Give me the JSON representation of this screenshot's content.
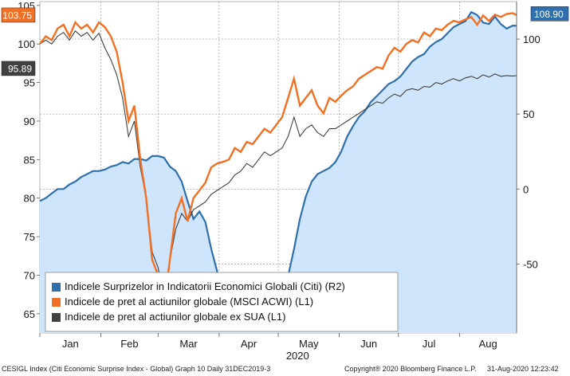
{
  "chart_data": {
    "type": "line",
    "year_label": "2020",
    "months": [
      "Jan",
      "Feb",
      "Mar",
      "Apr",
      "May",
      "Jun",
      "Jul",
      "Aug"
    ],
    "left_axis": {
      "ticks": [
        65,
        70,
        75,
        80,
        85,
        90,
        95,
        100,
        105
      ],
      "range": [
        62.5,
        105.5
      ]
    },
    "right_axis": {
      "ticks": [
        -50,
        0,
        50,
        100
      ],
      "range": [
        -96,
        125
      ]
    },
    "last_values": {
      "surprise": "108.90",
      "msci_acwi": "103.75",
      "ex_usa": "95.89"
    },
    "colors": {
      "surprise": "#2f6fad",
      "surprise_fill": "#cfe5fb",
      "msci_acwi": "#f27023",
      "ex_usa": "#404040",
      "grid": "#9a9a9a"
    },
    "legend_position": "bottom-left",
    "grid": true,
    "series": [
      {
        "name": "Indicele Surprizelor in Indicatorii Economici Globali (Citi) (R2)",
        "axis": "right",
        "x": [
          0,
          3,
          6,
          9,
          12,
          15,
          18,
          21,
          24,
          27,
          30,
          33,
          36,
          39,
          42,
          45,
          48,
          51,
          54,
          57,
          60,
          63,
          66,
          69,
          72,
          75,
          78,
          81,
          84,
          87,
          90,
          93,
          96,
          99,
          102,
          105,
          108,
          111,
          114,
          117,
          120,
          123,
          126,
          129,
          132,
          135,
          138,
          141,
          144,
          147,
          150,
          153,
          156,
          159,
          162,
          165,
          168,
          171,
          174,
          177,
          180,
          183,
          186,
          189,
          192,
          195,
          198,
          201,
          204,
          207,
          210,
          213,
          216,
          219,
          222,
          225,
          228,
          231,
          234,
          237,
          240,
          242
        ],
        "values": [
          -8,
          -6,
          -3,
          0,
          0,
          3,
          5,
          8,
          10,
          12,
          12,
          13,
          15,
          16,
          18,
          17,
          20,
          20,
          19,
          22,
          22,
          21,
          15,
          12,
          5,
          -8,
          -20,
          -15,
          -22,
          -40,
          -55,
          -70,
          -80,
          -85,
          -88,
          -90,
          -92,
          -90,
          -88,
          -80,
          -72,
          -65,
          -58,
          -40,
          -20,
          -5,
          5,
          10,
          12,
          14,
          18,
          25,
          35,
          42,
          48,
          52,
          58,
          62,
          66,
          70,
          72,
          75,
          80,
          85,
          88,
          90,
          95,
          98,
          100,
          104,
          108,
          110,
          112,
          118,
          116,
          111,
          110,
          115,
          110,
          107,
          109,
          108.9
        ]
      },
      {
        "name": "Indicele de pret al actiunilor globale (MSCI ACWI) (L1)",
        "axis": "left",
        "x": [
          0,
          3,
          6,
          9,
          12,
          15,
          18,
          21,
          24,
          27,
          30,
          33,
          36,
          39,
          42,
          45,
          48,
          51,
          54,
          57,
          60,
          63,
          66,
          69,
          72,
          75,
          78,
          81,
          84,
          87,
          90,
          93,
          96,
          99,
          102,
          105,
          108,
          111,
          114,
          117,
          120,
          123,
          126,
          129,
          132,
          135,
          138,
          141,
          144,
          147,
          150,
          153,
          156,
          159,
          162,
          165,
          168,
          171,
          174,
          177,
          180,
          183,
          186,
          189,
          192,
          195,
          198,
          201,
          204,
          207,
          210,
          213,
          216,
          219,
          222,
          225,
          228,
          231,
          234,
          237,
          240,
          242
        ],
        "values": [
          100,
          101,
          100.5,
          102,
          102.5,
          101,
          102.8,
          102,
          102.5,
          101.5,
          102.8,
          102.2,
          101,
          99,
          95,
          90,
          92,
          85,
          80,
          72,
          70,
          66,
          72,
          78,
          80,
          77,
          80,
          81,
          82,
          84,
          84.5,
          84.7,
          85,
          86.5,
          86,
          87.3,
          87,
          88,
          89,
          88.5,
          89.5,
          90.5,
          93,
          95.5,
          92,
          93,
          94,
          92,
          91,
          93,
          92.5,
          93.3,
          94,
          94.5,
          95.5,
          96,
          96.5,
          97,
          96.8,
          98.5,
          99.5,
          99,
          100,
          100.5,
          100.2,
          101.5,
          101,
          102,
          101.8,
          102.5,
          103,
          102.8,
          103.2,
          103.5,
          102.5,
          103.7,
          103,
          103.8,
          103.5,
          103.9,
          104,
          103.75
        ]
      },
      {
        "name": "Indicele de pret al actiunilor globale ex SUA (L1)",
        "axis": "left",
        "x": [
          0,
          3,
          6,
          9,
          12,
          15,
          18,
          21,
          24,
          27,
          30,
          33,
          36,
          39,
          42,
          45,
          48,
          51,
          54,
          57,
          60,
          63,
          66,
          69,
          72,
          75,
          78,
          81,
          84,
          87,
          90,
          93,
          96,
          99,
          102,
          105,
          108,
          111,
          114,
          117,
          120,
          123,
          126,
          129,
          132,
          135,
          138,
          141,
          144,
          147,
          150,
          153,
          156,
          159,
          162,
          165,
          168,
          171,
          174,
          177,
          180,
          183,
          186,
          189,
          192,
          195,
          198,
          201,
          204,
          207,
          210,
          213,
          216,
          219,
          222,
          225,
          228,
          231,
          234,
          237,
          240,
          242
        ],
        "values": [
          100,
          100.5,
          100,
          101,
          101.5,
          100.5,
          101.7,
          101,
          101.5,
          100.5,
          101.4,
          99.5,
          98,
          96,
          93,
          88,
          90,
          84,
          80,
          73,
          71,
          67,
          72,
          76,
          78,
          77,
          78.5,
          79,
          79.5,
          80.5,
          81,
          81.5,
          82,
          83,
          83.5,
          84.5,
          84,
          85,
          86,
          85.5,
          86,
          86.5,
          88,
          90.5,
          88,
          89,
          89.5,
          88.5,
          88,
          89,
          89,
          89.5,
          90,
          90.5,
          91,
          91.5,
          92,
          92.5,
          92.3,
          93,
          93.5,
          93.2,
          94,
          94.2,
          94,
          94.5,
          94.4,
          95,
          94.8,
          95.2,
          95.5,
          95.2,
          95.6,
          95.8,
          95.5,
          96,
          95.7,
          96.1,
          95.8,
          95.9,
          95.85,
          95.89
        ]
      }
    ]
  },
  "footer": {
    "left": "CESIGL Index (Citi Economic Surprise Index - Global) Graph 10  Daily 31DEC2019-3",
    "middle": "Copyright® 2020 Bloomberg Finance L.P.",
    "right": "31-Aug-2020 12:23:42"
  }
}
